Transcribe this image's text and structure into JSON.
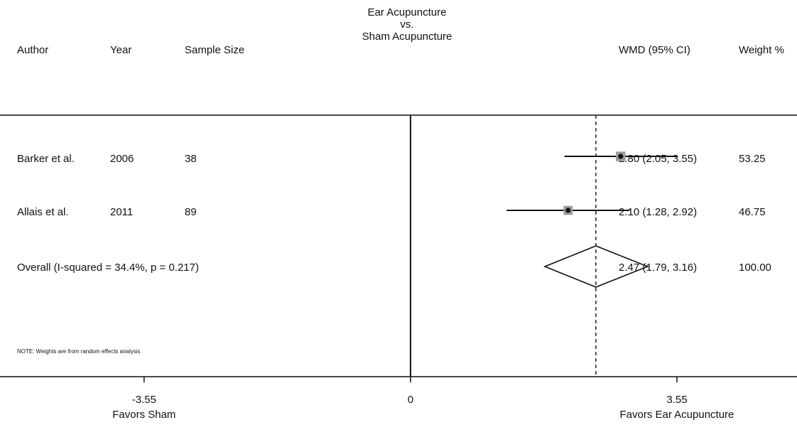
{
  "chart_data": {
    "type": "forest",
    "title_lines": [
      "Ear Acupuncture",
      "vs.",
      "Sham Acupuncture"
    ],
    "columns": {
      "author": "Author",
      "year": "Year",
      "sample_size": "Sample Size",
      "effect": "WMD (95% CI)",
      "weight": "Weight %"
    },
    "studies": [
      {
        "author": "Barker et al.",
        "year": "2006",
        "sample_size": "38",
        "estimate": 2.8,
        "ci": [
          2.05,
          3.55
        ],
        "ci_text": "2.80 (2.05, 3.55)",
        "weight": "53.25"
      },
      {
        "author": "Allais et al.",
        "year": "2011",
        "sample_size": "89",
        "estimate": 2.1,
        "ci": [
          1.28,
          2.92
        ],
        "ci_text": "2.10 (1.28, 2.92)",
        "weight": "46.75"
      }
    ],
    "overall": {
      "label": "Overall  (I-squared = 34.4%, p = 0.217)",
      "estimate": 2.47,
      "ci": [
        1.79,
        3.16
      ],
      "ci_text": "2.47 (1.79, 3.16)",
      "weight": "100.00"
    },
    "note": "NOTE: Weights are from random effects analysis",
    "x_ticks": [
      {
        "value": -3.55,
        "label": "-3.55"
      },
      {
        "value": 0,
        "label": "0"
      },
      {
        "value": 3.55,
        "label": "3.55"
      }
    ],
    "x_range": [
      -5.47,
      5.15
    ],
    "favors_left": "Favors Sham",
    "favors_right": "Favors Ear Acupuncture",
    "null_line": 0,
    "reference_line": 2.47
  }
}
